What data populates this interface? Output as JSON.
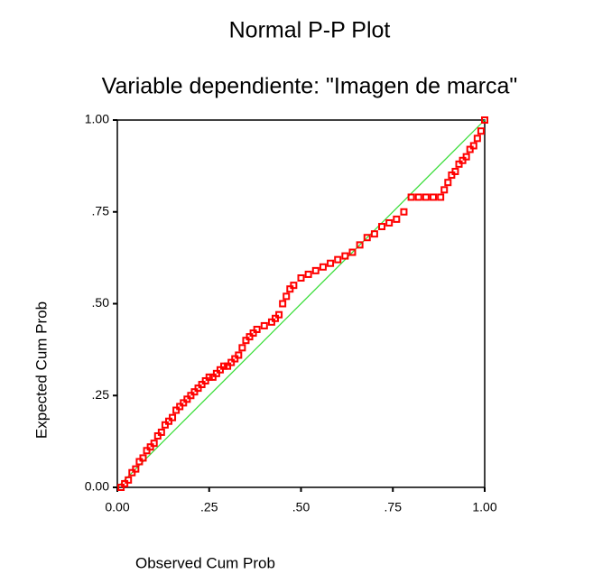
{
  "chart_data": {
    "type": "scatter",
    "title": "Normal P-P Plot",
    "subtitle": "Variable dependiente: \"Imagen de marca\"",
    "x_label": "Observed Cum Prob",
    "y_label": "Expected Cum Prob",
    "x": [
      0.01,
      0.02,
      0.03,
      0.04,
      0.05,
      0.06,
      0.07,
      0.08,
      0.09,
      0.1,
      0.11,
      0.12,
      0.13,
      0.14,
      0.15,
      0.16,
      0.17,
      0.18,
      0.19,
      0.2,
      0.21,
      0.22,
      0.23,
      0.24,
      0.25,
      0.26,
      0.27,
      0.28,
      0.29,
      0.3,
      0.31,
      0.32,
      0.33,
      0.34,
      0.35,
      0.36,
      0.37,
      0.38,
      0.4,
      0.42,
      0.43,
      0.44,
      0.45,
      0.46,
      0.47,
      0.48,
      0.5,
      0.52,
      0.54,
      0.56,
      0.58,
      0.6,
      0.62,
      0.64,
      0.66,
      0.68,
      0.7,
      0.72,
      0.74,
      0.76,
      0.78,
      0.8,
      0.82,
      0.84,
      0.86,
      0.88,
      0.89,
      0.9,
      0.91,
      0.92,
      0.93,
      0.94,
      0.95,
      0.96,
      0.97,
      0.98,
      0.99,
      1.0
    ],
    "values": [
      0.0,
      0.01,
      0.02,
      0.04,
      0.05,
      0.07,
      0.08,
      0.1,
      0.11,
      0.12,
      0.14,
      0.15,
      0.17,
      0.18,
      0.19,
      0.21,
      0.22,
      0.23,
      0.24,
      0.25,
      0.26,
      0.27,
      0.28,
      0.29,
      0.3,
      0.3,
      0.31,
      0.32,
      0.33,
      0.33,
      0.34,
      0.35,
      0.36,
      0.38,
      0.4,
      0.41,
      0.42,
      0.43,
      0.44,
      0.45,
      0.46,
      0.47,
      0.5,
      0.52,
      0.54,
      0.55,
      0.57,
      0.58,
      0.59,
      0.6,
      0.61,
      0.62,
      0.63,
      0.64,
      0.66,
      0.68,
      0.69,
      0.71,
      0.72,
      0.73,
      0.75,
      0.79,
      0.79,
      0.79,
      0.79,
      0.79,
      0.81,
      0.83,
      0.85,
      0.86,
      0.88,
      0.89,
      0.9,
      0.92,
      0.93,
      0.95,
      0.97,
      1.0
    ],
    "color": "#ff0000",
    "reference_color": "#33dd33",
    "xlim": [
      0,
      1
    ],
    "ylim": [
      0,
      1
    ],
    "xticks": [
      {
        "value": 0,
        "label": "0.00"
      },
      {
        "value": 0.25,
        "label": ".25"
      },
      {
        "value": 0.5,
        "label": ".50"
      },
      {
        "value": 0.75,
        "label": ".75"
      },
      {
        "value": 1,
        "label": "1.00"
      }
    ],
    "yticks": [
      {
        "value": 0,
        "label": "0.00"
      },
      {
        "value": 0.25,
        "label": ".25"
      },
      {
        "value": 0.5,
        "label": ".50"
      },
      {
        "value": 0.75,
        "label": ".75"
      },
      {
        "value": 1,
        "label": "1.00"
      }
    ]
  }
}
